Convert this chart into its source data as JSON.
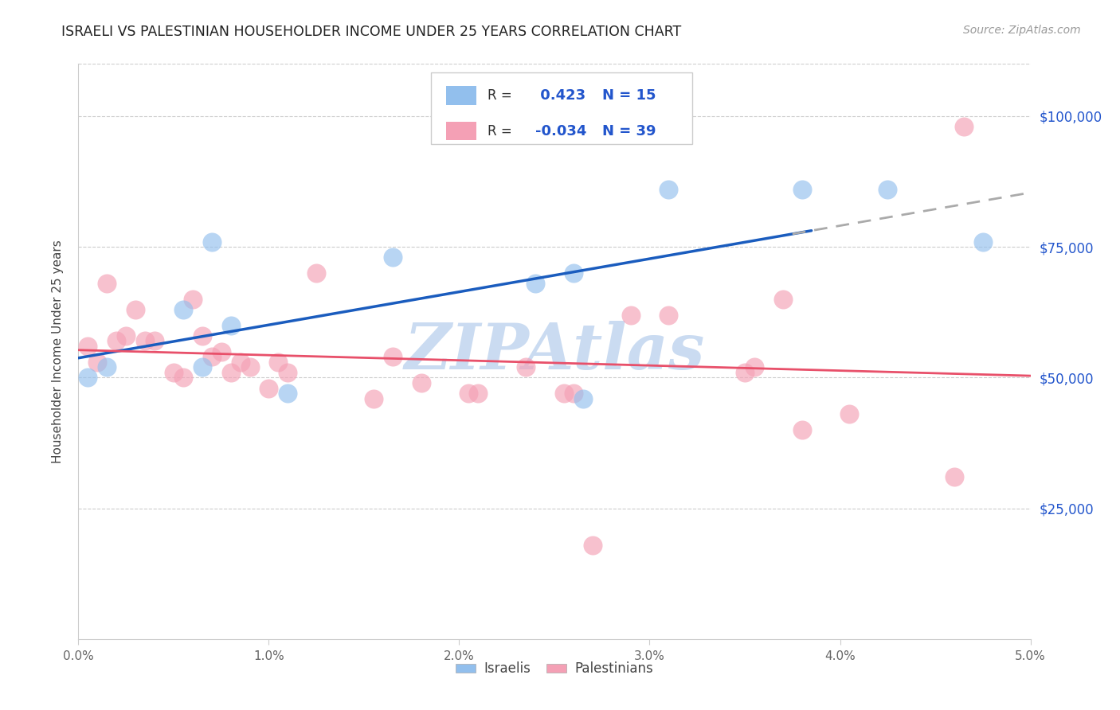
{
  "title": "ISRAELI VS PALESTINIAN HOUSEHOLDER INCOME UNDER 25 YEARS CORRELATION CHART",
  "source": "Source: ZipAtlas.com",
  "ylabel": "Householder Income Under 25 years",
  "legend_label1": "Israelis",
  "legend_label2": "Palestinians",
  "r1": 0.423,
  "n1": 15,
  "r2": -0.034,
  "n2": 39,
  "xmin": 0.0,
  "xmax": 5.0,
  "ymin": 0,
  "ymax": 110000,
  "ytick_labels": [
    "$25,000",
    "$50,000",
    "$75,000",
    "$100,000"
  ],
  "ytick_values": [
    25000,
    50000,
    75000,
    100000
  ],
  "color_israeli": "#92bfed",
  "color_palestinian": "#f4a0b5",
  "color_trend_israeli": "#1a5cbe",
  "color_trend_palestinian": "#e8506a",
  "color_dashed": "#aaaaaa",
  "watermark_text": "ZIPAtlas",
  "watermark_color": "#c5d8f0",
  "background_color": "#ffffff",
  "israelis_x": [
    0.05,
    0.15,
    0.55,
    0.65,
    0.7,
    0.8,
    1.1,
    1.65,
    2.4,
    2.6,
    2.65,
    3.1,
    3.8,
    4.25,
    4.75
  ],
  "israelis_y": [
    50000,
    52000,
    63000,
    52000,
    76000,
    60000,
    47000,
    73000,
    68000,
    70000,
    46000,
    86000,
    86000,
    86000,
    76000
  ],
  "palestinians_x": [
    0.05,
    0.1,
    0.15,
    0.2,
    0.25,
    0.3,
    0.35,
    0.4,
    0.5,
    0.55,
    0.6,
    0.65,
    0.7,
    0.75,
    0.8,
    0.85,
    0.9,
    1.0,
    1.05,
    1.1,
    1.25,
    1.55,
    1.65,
    1.8,
    2.05,
    2.1,
    2.35,
    2.55,
    2.6,
    2.7,
    2.9,
    3.1,
    3.55,
    3.7,
    3.8,
    4.05,
    4.6,
    4.65,
    3.5
  ],
  "palestinians_y": [
    56000,
    53000,
    68000,
    57000,
    58000,
    63000,
    57000,
    57000,
    51000,
    50000,
    65000,
    58000,
    54000,
    55000,
    51000,
    53000,
    52000,
    48000,
    53000,
    51000,
    70000,
    46000,
    54000,
    49000,
    47000,
    47000,
    52000,
    47000,
    47000,
    18000,
    62000,
    62000,
    52000,
    65000,
    40000,
    43000,
    31000,
    98000,
    51000
  ]
}
